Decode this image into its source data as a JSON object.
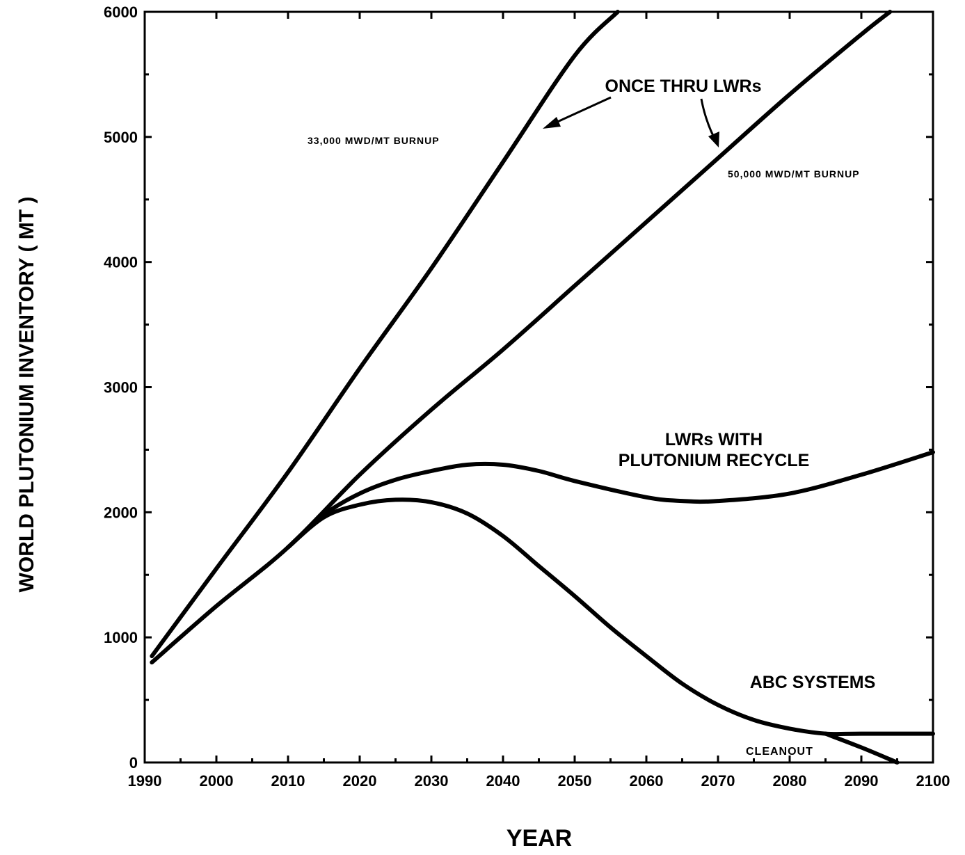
{
  "chart_data": {
    "type": "line",
    "title": "",
    "xlabel": "YEAR",
    "ylabel": "WORLD PLUTONIUM INVENTORY ( MT )",
    "xlim": [
      1990,
      2100
    ],
    "ylim": [
      0,
      6000
    ],
    "x_ticks": [
      1990,
      2000,
      2010,
      2020,
      2030,
      2040,
      2050,
      2060,
      2070,
      2080,
      2090,
      2100
    ],
    "x_tick_labels": [
      "1990",
      "2000",
      "2010",
      "2020",
      "2030",
      "2040",
      "2050",
      "2060",
      "2070",
      "2080",
      "2090",
      "2100"
    ],
    "y_ticks": [
      0,
      1000,
      2000,
      3000,
      4000,
      5000,
      6000
    ],
    "y_tick_labels": [
      "0",
      "1000",
      "2000",
      "3000",
      "4000",
      "5000",
      "6000"
    ],
    "grid": false,
    "series": [
      {
        "key": "burnup33",
        "x": [
          1991,
          2000,
          2010,
          2020,
          2030,
          2040,
          2050,
          2056
        ],
        "y": [
          850,
          1550,
          2320,
          3150,
          3950,
          4800,
          5650,
          6000
        ]
      },
      {
        "key": "burnup50",
        "x": [
          1991,
          2000,
          2010,
          2020,
          2030,
          2040,
          2050,
          2060,
          2070,
          2080,
          2090,
          2094
        ],
        "y": [
          800,
          1250,
          1720,
          2300,
          2820,
          3300,
          3810,
          4320,
          4830,
          5340,
          5820,
          6000
        ]
      },
      {
        "key": "recycle",
        "x": [
          2010,
          2015,
          2020,
          2025,
          2030,
          2035,
          2040,
          2045,
          2050,
          2060,
          2065,
          2070,
          2080,
          2090,
          2100
        ],
        "y": [
          1720,
          1980,
          2150,
          2260,
          2330,
          2380,
          2380,
          2330,
          2250,
          2120,
          2090,
          2090,
          2150,
          2300,
          2480
        ]
      },
      {
        "key": "abc",
        "x": [
          2010,
          2015,
          2020,
          2025,
          2030,
          2035,
          2040,
          2045,
          2050,
          2055,
          2060,
          2065,
          2070,
          2075,
          2080,
          2085,
          2090,
          2100
        ],
        "y": [
          1720,
          1960,
          2060,
          2100,
          2080,
          1990,
          1810,
          1570,
          1330,
          1080,
          850,
          630,
          460,
          340,
          270,
          230,
          230,
          230
        ]
      },
      {
        "key": "cleanout",
        "x": [
          2085,
          2090,
          2095
        ],
        "y": [
          230,
          120,
          0
        ]
      }
    ],
    "annotations": [
      {
        "text": "ONCE THRU LWRs",
        "x": 2069,
        "y": 5400
      },
      {
        "text": "33,000 MWD/MT BURNUP",
        "x": 2022,
        "y": 4980
      },
      {
        "text": "50,000 MWD/MT BURNUP",
        "x": 2089,
        "y": 4720
      },
      {
        "text": "LWRs WITH",
        "x": 2057,
        "y": 2570
      },
      {
        "text": "PLUTONIUM RECYCLE",
        "x": 2057,
        "y": 2400
      },
      {
        "text": "ABC SYSTEMS",
        "x": 2083,
        "y": 630
      },
      {
        "text": "CLEANOUT",
        "x": 2082,
        "y": 70
      }
    ]
  }
}
